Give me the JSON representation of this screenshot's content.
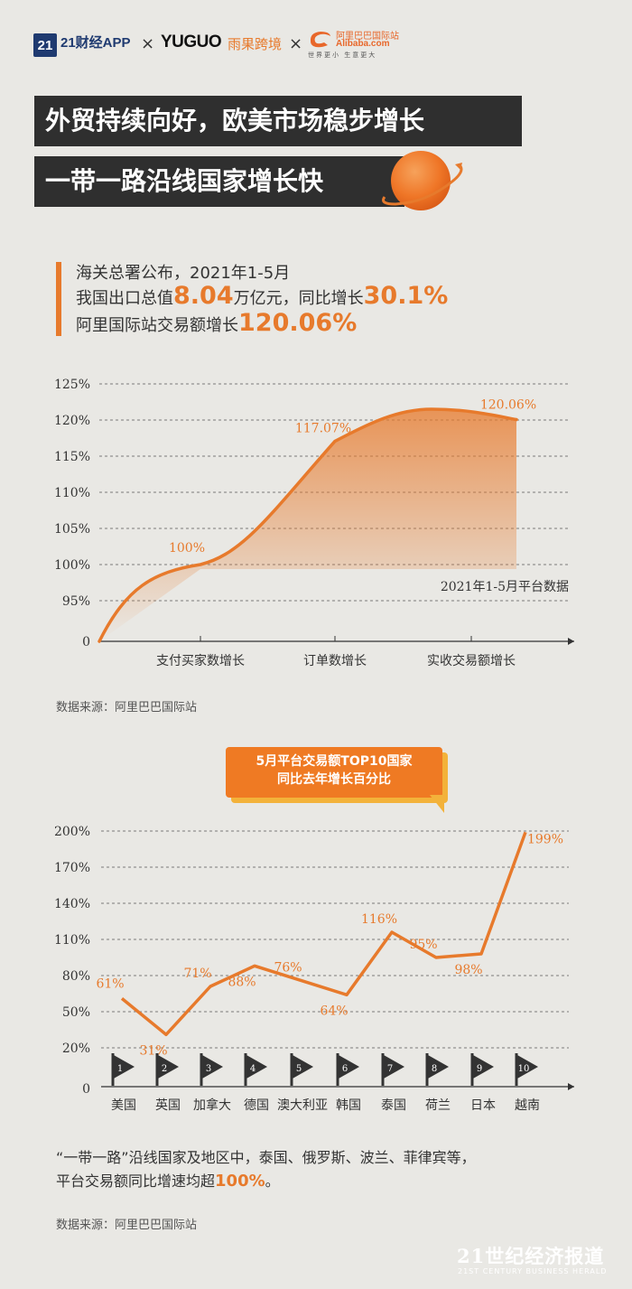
{
  "header": {
    "logo1_badge": "21",
    "logo1_name": "21财经APP",
    "logo2_name": "YUGUO",
    "logo2_cn": "雨果跨境",
    "logo3_cn": "阿里巴巴国际站",
    "logo3_en": "Alibaba.com",
    "logo3_slogan": "世界更小 生意更大",
    "separator": "×"
  },
  "titles": {
    "line1": "外贸持续向好，欧美市场稳步增长",
    "line2": "一带一路沿线国家增长快"
  },
  "intro": {
    "line1": "海关总署公布，2021年1-5月",
    "line2_prefix": "我国出口总值",
    "line2_value": "8.04",
    "line2_mid": "万亿元，同比增长",
    "line2_rate": "30.1%",
    "line3_prefix": "阿里国际站交易额增长",
    "line3_value": "120.06%"
  },
  "chart_data": [
    {
      "type": "area",
      "title": "",
      "categories": [
        "支付买家数增长",
        "订单数增长",
        "实收交易额增长"
      ],
      "values": [
        100,
        117.07,
        120.06
      ],
      "data_labels": [
        "100%",
        "117.07%",
        "120.06%"
      ],
      "y_ticks": [
        "0",
        "95%",
        "100%",
        "105%",
        "110%",
        "115%",
        "120%",
        "125%"
      ],
      "y_tick_values": [
        0,
        95,
        100,
        105,
        110,
        115,
        120,
        125
      ],
      "ylim": [
        0,
        125
      ],
      "annotation": "2021年1-5月平台数据",
      "grid": true,
      "line_color": "#e77a2c"
    },
    {
      "type": "line",
      "title": "5月平台交易额TOP10国家 同比去年增长百分比",
      "categories": [
        "美国",
        "英国",
        "加拿大",
        "德国",
        "澳大利亚",
        "韩国",
        "泰国",
        "荷兰",
        "日本",
        "越南"
      ],
      "flag_numbers": [
        "1",
        "2",
        "3",
        "4",
        "5",
        "6",
        "7",
        "8",
        "9",
        "10"
      ],
      "values": [
        61,
        31,
        71,
        88,
        76,
        64,
        116,
        95,
        98,
        199
      ],
      "data_labels": [
        "61%",
        "31%",
        "71%",
        "88%",
        "76%",
        "64%",
        "116%",
        "95%",
        "98%",
        "199%"
      ],
      "y_ticks": [
        "0",
        "20%",
        "50%",
        "80%",
        "110%",
        "140%",
        "170%",
        "200%"
      ],
      "y_tick_values": [
        0,
        20,
        50,
        80,
        110,
        140,
        170,
        200
      ],
      "ylim": [
        0,
        200
      ],
      "grid": true,
      "line_color": "#e77a2c"
    }
  ],
  "notes": {
    "source1": "数据来源：阿里巴巴国际站",
    "source2": "数据来源：阿里巴巴国际站"
  },
  "bubble": {
    "line1": "5月平台交易额TOP10国家",
    "line2": "同比去年增长百分比"
  },
  "bottom": {
    "line1": "“一带一路”沿线国家及地区中，泰国、俄罗斯、波兰、菲律宾等，",
    "line2_prefix": "平台交易额同比增速均超",
    "line2_value": "100%",
    "line2_suffix": "。"
  },
  "watermark": {
    "cn": "21世纪经济报道",
    "en": "21ST CENTURY BUSINESS HERALD"
  },
  "colors": {
    "accent": "#e77a2c",
    "dark_bar": "#2f2f2f",
    "background": "#e9e8e4"
  }
}
